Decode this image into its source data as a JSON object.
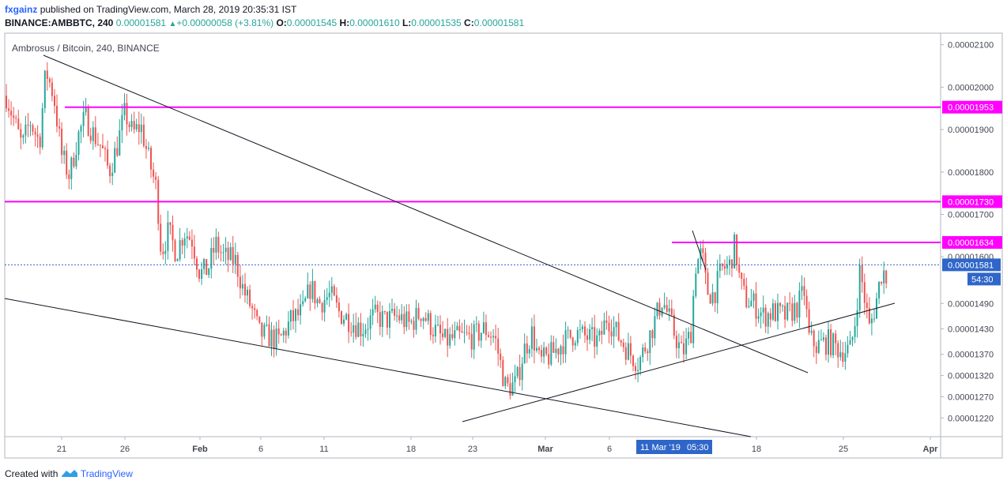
{
  "header": {
    "author": "fxgainz",
    "published_text": "published on TradingView.com, March 28, 2019 20:35:31 IST",
    "symbol": "BINANCE:AMBBTC, 240",
    "last": "0.00001581",
    "change": "+0.00000058 (+3.81%)",
    "o_label": "O:",
    "o": "0.00001545",
    "h_label": "H:",
    "h": "0.00001610",
    "l_label": "L:",
    "l": "0.00001535",
    "c_label": "C:",
    "c": "0.00001581"
  },
  "footer": {
    "created_with": "Created with",
    "brand": "TradingView"
  },
  "colors": {
    "up": "#26a69a",
    "down": "#ef5350",
    "level": "#ff00ff",
    "trend": "#131722",
    "last": "#2f66c9"
  },
  "chart_data": {
    "type": "candlestick",
    "legend": "Ambrosus / Bitcoin, 240, BINANCE",
    "x_ticks": [
      "21",
      "26",
      "Feb",
      "6",
      "11",
      "18",
      "23",
      "Mar",
      "6",
      "11 Mar '19",
      "18",
      "25",
      "Apr"
    ],
    "crosshair_time": "05:30",
    "y_ticks": [
      "0.00002100",
      "0.00002000",
      "0.00001900",
      "0.00001800",
      "0.00001700",
      "0.00001600",
      "0.00001490",
      "0.00001430",
      "0.00001370",
      "0.00001320",
      "0.00001270",
      "0.00001220"
    ],
    "ylim": [
      1.2e-05,
      2.12e-05
    ],
    "horizontal_levels": [
      "0.00001953",
      "0.00001730",
      "0.00001634"
    ],
    "last_price": "0.00001581",
    "countdown": "54:30",
    "price_path": [
      [
        0,
        1.98e-05
      ],
      [
        10,
        1.92e-05
      ],
      [
        20,
        1.86e-05
      ],
      [
        30,
        1.92e-05
      ],
      [
        42,
        1.87e-05
      ],
      [
        50,
        2.04e-05
      ],
      [
        60,
        1.98e-05
      ],
      [
        70,
        1.84e-05
      ],
      [
        80,
        1.79e-05
      ],
      [
        90,
        1.88e-05
      ],
      [
        100,
        1.93e-05
      ],
      [
        110,
        1.89e-05
      ],
      [
        120,
        1.86e-05
      ],
      [
        130,
        1.8e-05
      ],
      [
        140,
        1.86e-05
      ],
      [
        150,
        1.94e-05
      ],
      [
        160,
        1.89e-05
      ],
      [
        170,
        1.91e-05
      ],
      [
        180,
        1.83e-05
      ],
      [
        190,
        1.76e-05
      ],
      [
        196,
        1.61e-05
      ],
      [
        205,
        1.66e-05
      ],
      [
        215,
        1.61e-05
      ],
      [
        225,
        1.66e-05
      ],
      [
        235,
        1.64e-05
      ],
      [
        245,
        1.56e-05
      ],
      [
        255,
        1.57e-05
      ],
      [
        265,
        1.63e-05
      ],
      [
        275,
        1.6e-05
      ],
      [
        290,
        1.59e-05
      ],
      [
        300,
        1.52e-05
      ],
      [
        310,
        1.48e-05
      ],
      [
        320,
        1.42e-05
      ],
      [
        335,
        1.41e-05
      ],
      [
        345,
        1.4e-05
      ],
      [
        360,
        1.45e-05
      ],
      [
        375,
        1.47e-05
      ],
      [
        385,
        1.53e-05
      ],
      [
        395,
        1.49e-05
      ],
      [
        410,
        1.51e-05
      ],
      [
        420,
        1.47e-05
      ],
      [
        435,
        1.45e-05
      ],
      [
        450,
        1.43e-05
      ],
      [
        465,
        1.46e-05
      ],
      [
        480,
        1.45e-05
      ],
      [
        495,
        1.46e-05
      ],
      [
        510,
        1.44e-05
      ],
      [
        525,
        1.47e-05
      ],
      [
        540,
        1.43e-05
      ],
      [
        555,
        1.4e-05
      ],
      [
        570,
        1.41e-05
      ],
      [
        590,
        1.41e-05
      ],
      [
        605,
        1.43e-05
      ],
      [
        618,
        1.41e-05
      ],
      [
        625,
        1.35e-05
      ],
      [
        632,
        1.29e-05
      ],
      [
        645,
        1.3e-05
      ],
      [
        655,
        1.38e-05
      ],
      [
        665,
        1.42e-05
      ],
      [
        675,
        1.35e-05
      ],
      [
        690,
        1.37e-05
      ],
      [
        705,
        1.4e-05
      ],
      [
        720,
        1.42e-05
      ],
      [
        735,
        1.41e-05
      ],
      [
        750,
        1.4e-05
      ],
      [
        760,
        1.46e-05
      ],
      [
        775,
        1.41e-05
      ],
      [
        790,
        1.37e-05
      ],
      [
        800,
        1.35e-05
      ],
      [
        815,
        1.42e-05
      ],
      [
        830,
        1.5e-05
      ],
      [
        845,
        1.42e-05
      ],
      [
        855,
        1.37e-05
      ],
      [
        866,
        1.42e-05
      ],
      [
        872,
        1.58e-05
      ],
      [
        880,
        1.61e-05
      ],
      [
        886,
        1.52e-05
      ],
      [
        895,
        1.51e-05
      ],
      [
        905,
        1.57e-05
      ],
      [
        915,
        1.58e-05
      ],
      [
        922,
        1.63e-05
      ],
      [
        928,
        1.54e-05
      ],
      [
        935,
        1.5e-05
      ],
      [
        945,
        1.49e-05
      ],
      [
        958,
        1.46e-05
      ],
      [
        970,
        1.47e-05
      ],
      [
        985,
        1.46e-05
      ],
      [
        1000,
        1.48e-05
      ],
      [
        1010,
        1.52e-05
      ],
      [
        1015,
        1.41e-05
      ],
      [
        1025,
        1.39e-05
      ],
      [
        1040,
        1.4e-05
      ],
      [
        1055,
        1.38e-05
      ],
      [
        1068,
        1.38e-05
      ],
      [
        1074,
        1.45e-05
      ],
      [
        1080,
        1.57e-05
      ],
      [
        1086,
        1.5e-05
      ],
      [
        1092,
        1.43e-05
      ],
      [
        1100,
        1.49e-05
      ],
      [
        1108,
        1.57e-05
      ],
      [
        1115,
        1.55e-05
      ],
      [
        1123,
        1.58e-05
      ]
    ]
  }
}
